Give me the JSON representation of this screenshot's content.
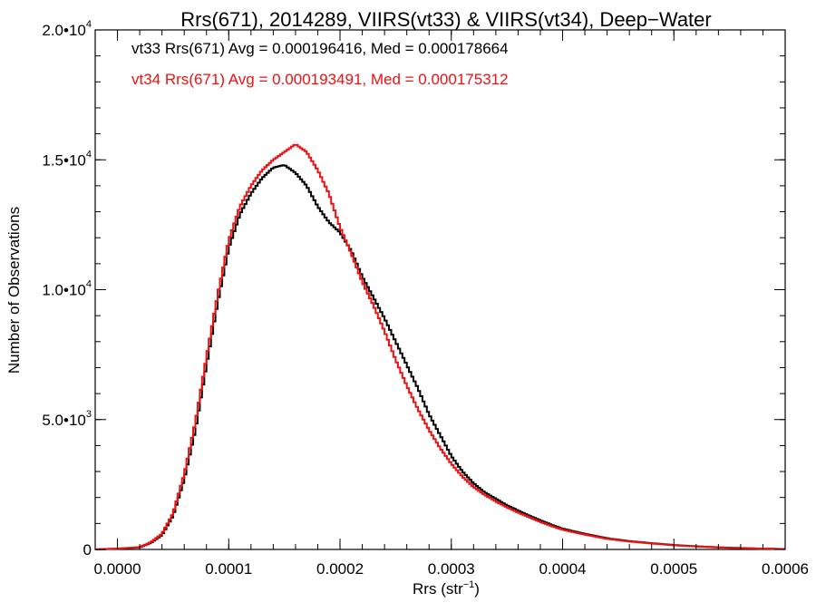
{
  "chart_data": {
    "type": "histogram-step",
    "title": "Rrs(671), 2014289, VIIRS(vt33) & VIIRS(vt34), Deep−Water",
    "xlabel": "Rrs (str",
    "xlabel_sup": "−1",
    "xlabel_end": ")",
    "ylabel": "Number of Observations",
    "xlim": [
      -2e-05,
      0.0006
    ],
    "ylim": [
      0,
      20000
    ],
    "x_ticks": [
      {
        "value": 0.0,
        "label": "0.0000"
      },
      {
        "value": 0.0001,
        "label": "0.0001"
      },
      {
        "value": 0.0002,
        "label": "0.0002"
      },
      {
        "value": 0.0003,
        "label": "0.0003"
      },
      {
        "value": 0.0004,
        "label": "0.0004"
      },
      {
        "value": 0.0005,
        "label": "0.0005"
      },
      {
        "value": 0.0006,
        "label": "0.0006"
      }
    ],
    "y_ticks": [
      {
        "value": 0,
        "mant": "0",
        "exp": ""
      },
      {
        "value": 5000,
        "mant": "5.0•10",
        "exp": "3"
      },
      {
        "value": 10000,
        "mant": "1.0•10",
        "exp": "4"
      },
      {
        "value": 15000,
        "mant": "1.5•10",
        "exp": "4"
      },
      {
        "value": 20000,
        "mant": "2.0•10",
        "exp": "4"
      }
    ],
    "annotations": [
      {
        "text": "vt33 Rrs(671) Avg = 0.000196416, Med = 0.000178664",
        "color": "#000000"
      },
      {
        "text": "vt34 Rrs(671) Avg = 0.000193491, Med = 0.000175312",
        "color": "#ee1111"
      }
    ],
    "series": [
      {
        "name": "vt33",
        "color": "#000000",
        "points": [
          [
            -2e-05,
            0
          ],
          [
            0.0,
            30
          ],
          [
            2e-05,
            80
          ],
          [
            3e-05,
            250
          ],
          [
            4e-05,
            550
          ],
          [
            5e-05,
            1300
          ],
          [
            6e-05,
            2700
          ],
          [
            7e-05,
            4600
          ],
          [
            8e-05,
            7100
          ],
          [
            9e-05,
            9500
          ],
          [
            0.0001,
            11600
          ],
          [
            0.00011,
            12900
          ],
          [
            0.00012,
            13700
          ],
          [
            0.00013,
            14300
          ],
          [
            0.00014,
            14700
          ],
          [
            0.00015,
            14800
          ],
          [
            0.00016,
            14500
          ],
          [
            0.00017,
            14000
          ],
          [
            0.00018,
            13200
          ],
          [
            0.00019,
            12600
          ],
          [
            0.0002,
            12200
          ],
          [
            0.00021,
            11500
          ],
          [
            0.00022,
            10500
          ],
          [
            0.00023,
            9700
          ],
          [
            0.00024,
            8900
          ],
          [
            0.00025,
            8000
          ],
          [
            0.00026,
            7100
          ],
          [
            0.00027,
            6200
          ],
          [
            0.00028,
            5200
          ],
          [
            0.00029,
            4400
          ],
          [
            0.0003,
            3600
          ],
          [
            0.00031,
            3000
          ],
          [
            0.00032,
            2550
          ],
          [
            0.00033,
            2200
          ],
          [
            0.00034,
            1950
          ],
          [
            0.00035,
            1700
          ],
          [
            0.00036,
            1500
          ],
          [
            0.00037,
            1300
          ],
          [
            0.00038,
            1120
          ],
          [
            0.00039,
            950
          ],
          [
            0.0004,
            800
          ],
          [
            0.00042,
            600
          ],
          [
            0.00044,
            430
          ],
          [
            0.00046,
            320
          ],
          [
            0.00048,
            240
          ],
          [
            0.0005,
            170
          ],
          [
            0.00052,
            120
          ],
          [
            0.00054,
            80
          ],
          [
            0.00056,
            55
          ],
          [
            0.00058,
            30
          ],
          [
            0.0006,
            15
          ]
        ]
      },
      {
        "name": "vt34",
        "color": "#ee1111",
        "points": [
          [
            -2e-05,
            0
          ],
          [
            0.0,
            30
          ],
          [
            2e-05,
            90
          ],
          [
            3e-05,
            280
          ],
          [
            4e-05,
            600
          ],
          [
            5e-05,
            1400
          ],
          [
            6e-05,
            2900
          ],
          [
            7e-05,
            4900
          ],
          [
            8e-05,
            7400
          ],
          [
            9e-05,
            9800
          ],
          [
            0.0001,
            11900
          ],
          [
            0.00011,
            13200
          ],
          [
            0.00012,
            14000
          ],
          [
            0.00013,
            14600
          ],
          [
            0.00014,
            15000
          ],
          [
            0.00015,
            15300
          ],
          [
            0.00016,
            15600
          ],
          [
            0.00017,
            15300
          ],
          [
            0.00018,
            14600
          ],
          [
            0.00019,
            13700
          ],
          [
            0.0002,
            12400
          ],
          [
            0.00021,
            11400
          ],
          [
            0.00022,
            10300
          ],
          [
            0.00023,
            9400
          ],
          [
            0.00024,
            8400
          ],
          [
            0.00025,
            7300
          ],
          [
            0.00026,
            6300
          ],
          [
            0.00027,
            5400
          ],
          [
            0.00028,
            4600
          ],
          [
            0.00029,
            3900
          ],
          [
            0.0003,
            3300
          ],
          [
            0.00031,
            2800
          ],
          [
            0.00032,
            2400
          ],
          [
            0.00033,
            2100
          ],
          [
            0.00034,
            1850
          ],
          [
            0.00035,
            1620
          ],
          [
            0.00036,
            1420
          ],
          [
            0.00037,
            1240
          ],
          [
            0.00038,
            1060
          ],
          [
            0.00039,
            900
          ],
          [
            0.0004,
            760
          ],
          [
            0.00042,
            570
          ],
          [
            0.00044,
            410
          ],
          [
            0.00046,
            305
          ],
          [
            0.00048,
            230
          ],
          [
            0.0005,
            160
          ],
          [
            0.00052,
            115
          ],
          [
            0.00054,
            75
          ],
          [
            0.00056,
            50
          ],
          [
            0.00058,
            28
          ],
          [
            0.0006,
            14
          ]
        ]
      }
    ]
  }
}
